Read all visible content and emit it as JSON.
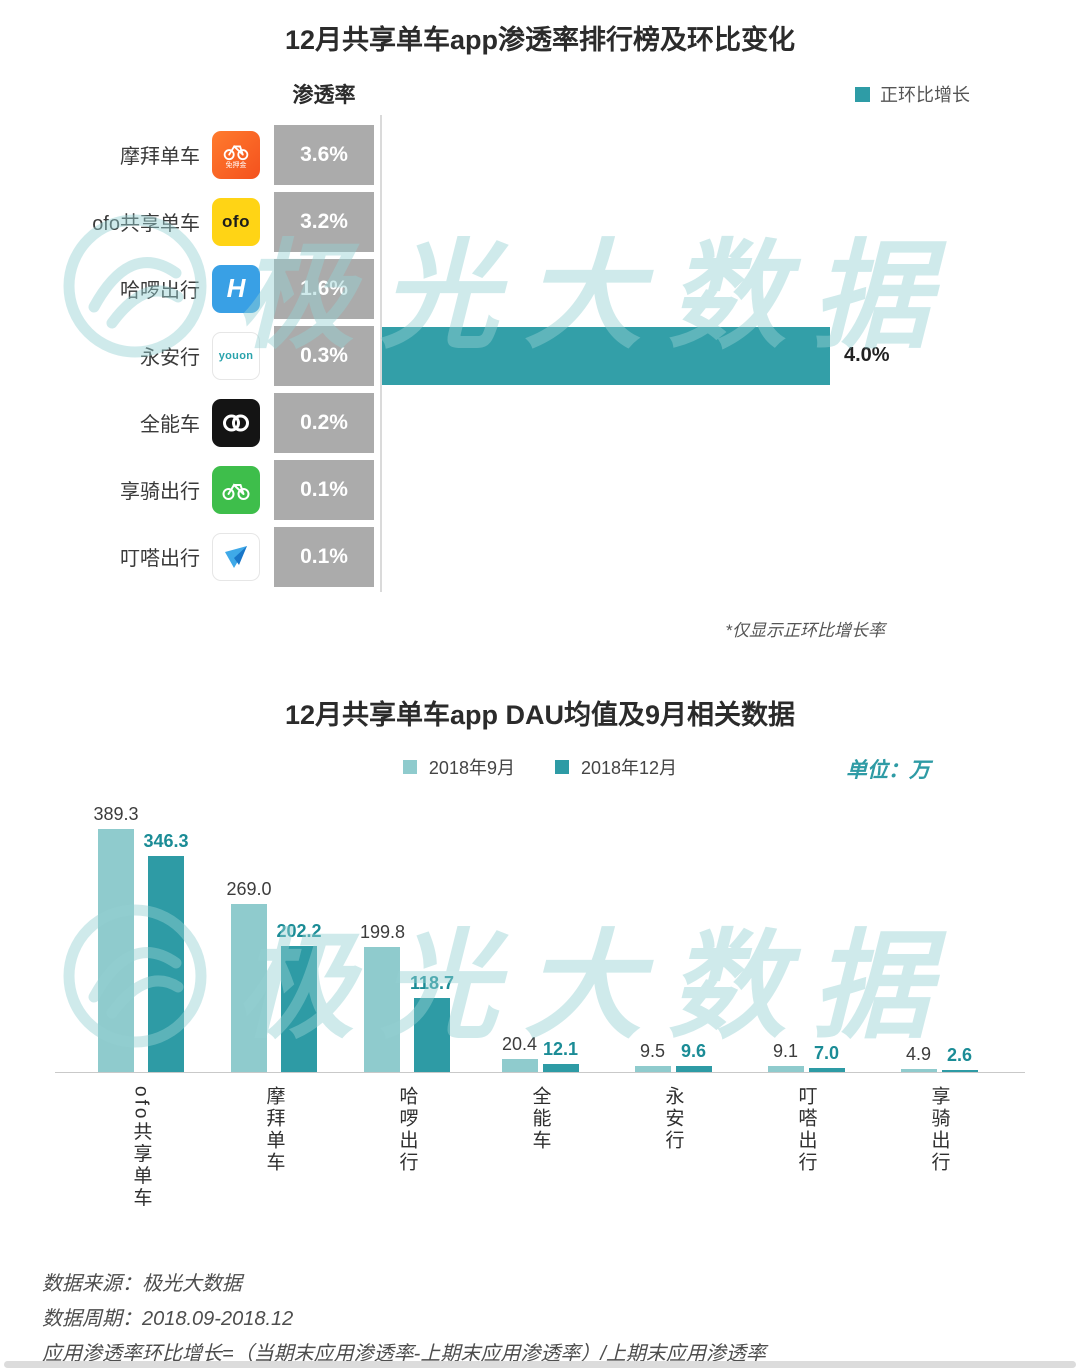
{
  "watermark": {
    "text": "极光大数据"
  },
  "palette": {
    "accent": "#2E9CA6",
    "accent_light": "#8FCBCD",
    "gray_chip": "#ABABAB"
  },
  "chart1": {
    "title": "12月共享单车app渗透率排行榜及环比变化",
    "column_header": "渗透率",
    "legend_label": "正环比增长",
    "note": "*仅显示正环比增长率",
    "rows": [
      {
        "name": "摩拜单车",
        "icon": "mobike-icon",
        "icon_text": "免押金",
        "penetration": "3.6%",
        "growth": null,
        "growth_label": ""
      },
      {
        "name": "ofo共享单车",
        "icon": "ofo-icon",
        "icon_text": "ofo",
        "penetration": "3.2%",
        "growth": null,
        "growth_label": ""
      },
      {
        "name": "哈啰出行",
        "icon": "hellobike-icon",
        "icon_text": "H",
        "penetration": "1.6%",
        "growth": null,
        "growth_label": ""
      },
      {
        "name": "永安行",
        "icon": "youon-icon",
        "icon_text": "youon",
        "penetration": "0.3%",
        "growth": 4.0,
        "growth_label": "4.0%"
      },
      {
        "name": "全能车",
        "icon": "quannengche-icon",
        "icon_text": "",
        "penetration": "0.2%",
        "growth": null,
        "growth_label": ""
      },
      {
        "name": "享骑出行",
        "icon": "xiangqi-icon",
        "icon_text": "",
        "penetration": "0.1%",
        "growth": null,
        "growth_label": ""
      },
      {
        "name": "叮嗒出行",
        "icon": "dingda-icon",
        "icon_text": "",
        "penetration": "0.1%",
        "growth": null,
        "growth_label": ""
      }
    ]
  },
  "chart2": {
    "title": "12月共享单车app DAU均值及9月相关数据",
    "unit_label": "单位：万",
    "legend": [
      "2018年9月",
      "2018年12月"
    ]
  },
  "chart_data": [
    {
      "type": "bar",
      "orientation": "horizontal",
      "title": "12月共享单车app渗透率排行榜及环比变化",
      "categories": [
        "摩拜单车",
        "ofo共享单车",
        "哈啰出行",
        "永安行",
        "全能车",
        "享骑出行",
        "叮嗒出行"
      ],
      "penetration_labels": [
        "3.6%",
        "3.2%",
        "1.6%",
        "0.3%",
        "0.2%",
        "0.1%",
        "0.1%"
      ],
      "series": [
        {
          "name": "正环比增长",
          "values": [
            null,
            null,
            null,
            4.0,
            null,
            null,
            null
          ]
        }
      ],
      "xlim": [
        0,
        4.5
      ],
      "note": "*仅显示正环比增长率",
      "legend": [
        "正环比增长"
      ]
    },
    {
      "type": "bar",
      "title": "12月共享单车app DAU均值及9月相关数据",
      "categories": [
        "ofo共享单车",
        "摩拜单车",
        "哈啰出行",
        "全能车",
        "永安行",
        "叮嗒出行",
        "享骑出行"
      ],
      "series": [
        {
          "name": "2018年9月",
          "values": [
            389.3,
            269.0,
            199.8,
            20.4,
            9.5,
            9.1,
            4.9
          ]
        },
        {
          "name": "2018年12月",
          "values": [
            346.3,
            202.2,
            118.7,
            12.1,
            9.6,
            7.0,
            2.6
          ]
        }
      ],
      "ylabel": "单位：万",
      "ylim": [
        0,
        400
      ],
      "grid": false,
      "legend_position": "top"
    }
  ],
  "footer": {
    "lines": [
      "数据来源：极光大数据",
      "数据周期：2018.09-2018.12",
      "应用渗透率环比增长=（当期末应用渗透率-上期末应用渗透率）/上期末应用渗透率"
    ]
  }
}
